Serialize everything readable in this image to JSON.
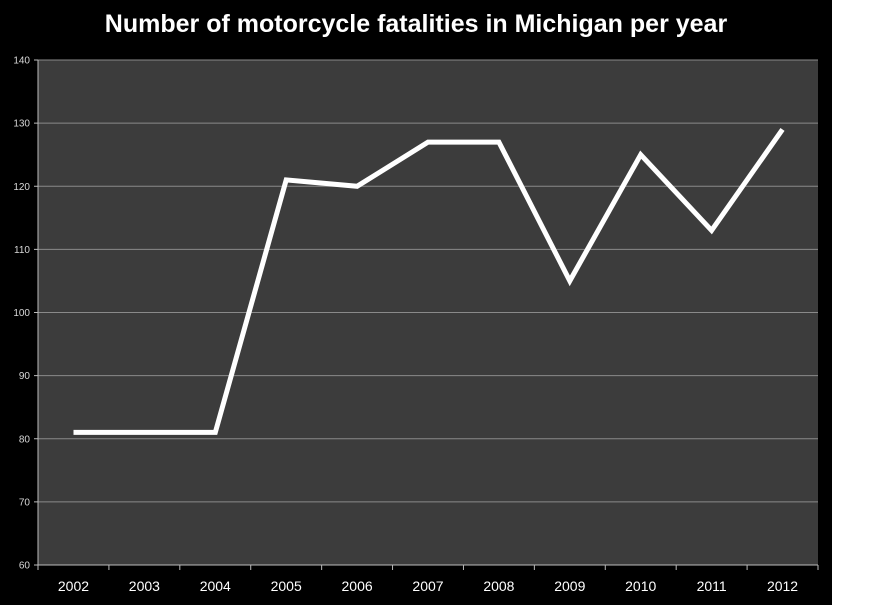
{
  "chart_data": {
    "type": "line",
    "title": "Number of motorcycle fatalities in Michigan per year",
    "xlabel": "",
    "ylabel": "",
    "categories": [
      "2002",
      "2003",
      "2004",
      "2005",
      "2006",
      "2007",
      "2008",
      "2009",
      "2010",
      "2011",
      "2012"
    ],
    "series": [
      {
        "values": [
          81,
          81,
          81,
          121,
          120,
          127,
          127,
          105,
          125,
          113,
          129
        ]
      }
    ],
    "ylim": [
      60,
      140
    ],
    "yticks": [
      "60",
      "70",
      "80",
      "90",
      "100",
      "110",
      "120",
      "130",
      "140"
    ],
    "grid": true,
    "legend": "none",
    "colors": {
      "background": "#000000",
      "plot_area": "#3c3c3c",
      "gridline": "#8a8a8a",
      "line": "#ffffff"
    }
  }
}
